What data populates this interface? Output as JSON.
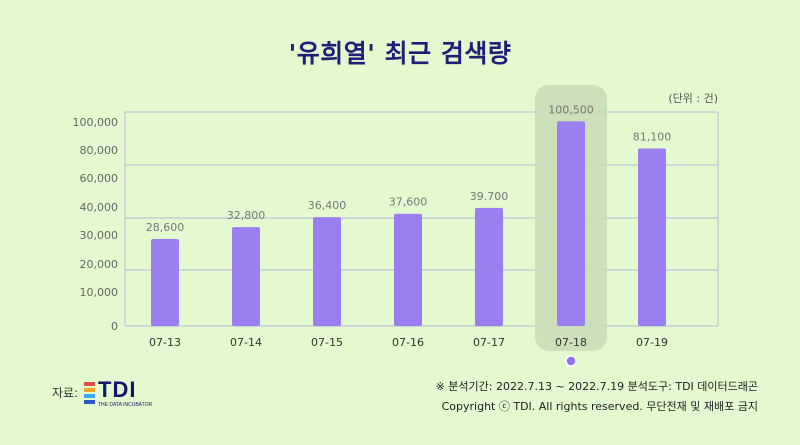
{
  "title": "'유희열' 최근 검색량",
  "unit_note": "(단위 : 건)",
  "source_label": "자료:",
  "logo": {
    "text": "TDI",
    "subtitle": "THE DATA INCUBATOR"
  },
  "footer": {
    "period": "※ 분석기간: 2022.7.13 ~ 2022.7.19    분석도구: TDI 데이터드래곤",
    "copyright": "Copyright ⓒ TDI. All rights reserved. 무단전재 및 재배포 금지"
  },
  "colors": {
    "bar": "#9b7ff0",
    "highlight_box": "#c9dcb8",
    "gridline": "#b8b8d8",
    "dot": "#8f73ee"
  },
  "chart_data": {
    "type": "bar",
    "categories": [
      "07-13",
      "07-14",
      "07-15",
      "07-16",
      "07-17",
      "07-18",
      "07-19"
    ],
    "values": [
      28600,
      32800,
      36400,
      37600,
      39700,
      100500,
      81100
    ],
    "data_labels": [
      "28,600",
      "32,800",
      "36,400",
      "37,600",
      "39.700",
      "100,500",
      "81,100"
    ],
    "y_tick_labels": [
      "0",
      "10,000",
      "20,000",
      "30,000",
      "40,000",
      "60,000",
      "80,000",
      "100,000"
    ],
    "highlight_category": "07-18",
    "grid": true
  }
}
